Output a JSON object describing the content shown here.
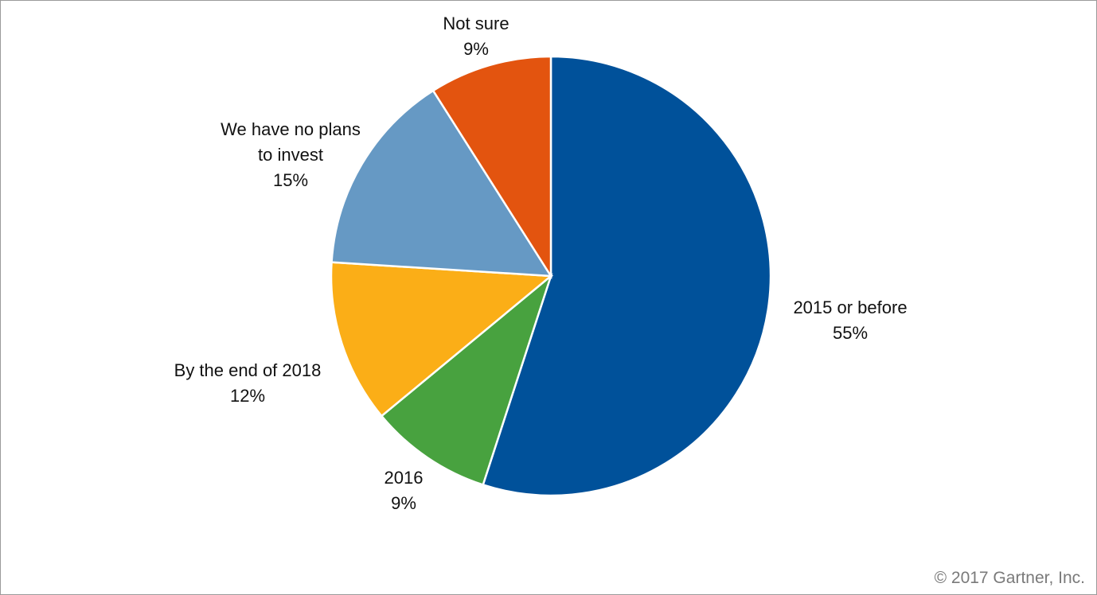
{
  "chart_data": {
    "type": "pie",
    "start": "12 o'clock",
    "direction": "clockwise",
    "slices": [
      {
        "label": "2015 or before",
        "value": 55,
        "display": "55%",
        "color": "#00519A"
      },
      {
        "label": "2016",
        "value": 9,
        "display": "9%",
        "color": "#48A23F"
      },
      {
        "label": "By the end of 2018",
        "value": 12,
        "display": "12%",
        "color": "#FBAE17"
      },
      {
        "label": "We have no plans to invest",
        "value": 15,
        "display": "15%",
        "color": "#6699C4"
      },
      {
        "label": "Not sure",
        "value": 9,
        "display": "9%",
        "color": "#E3540F"
      }
    ],
    "legend": "none"
  },
  "footer": {
    "copyright": "© 2017 Gartner, Inc."
  }
}
